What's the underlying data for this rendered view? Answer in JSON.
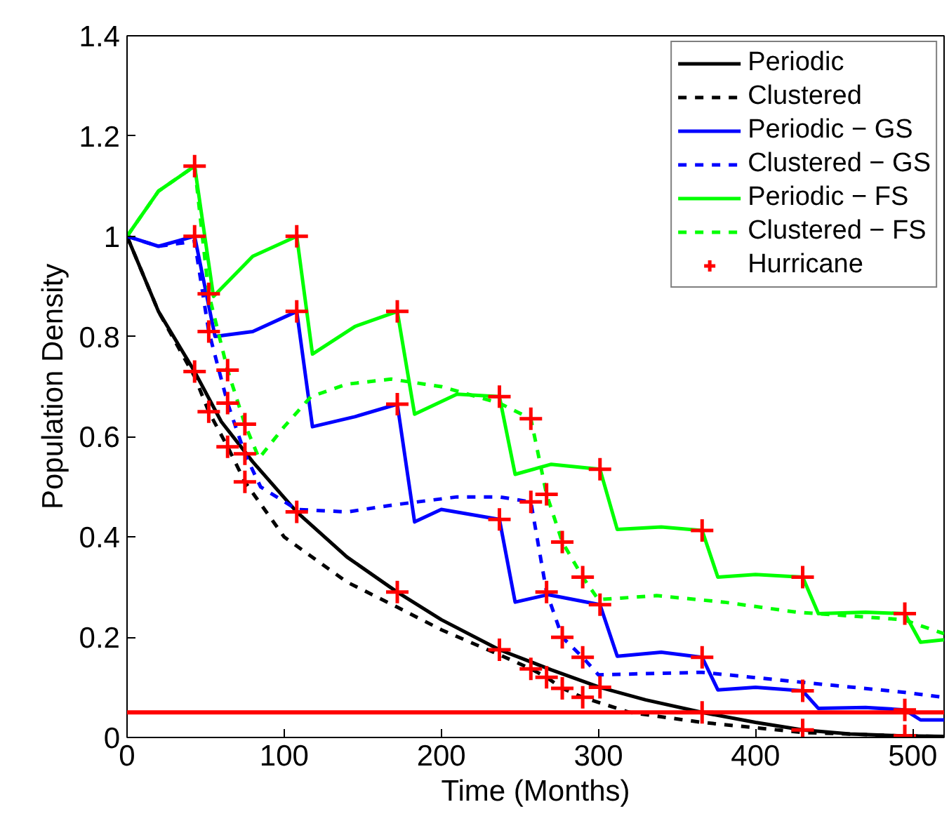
{
  "chart_data": {
    "type": "line",
    "xlabel": "Time (Months)",
    "ylabel": "Population Density",
    "xlim": [
      0,
      520
    ],
    "ylim": [
      0,
      1.4
    ],
    "xticks": [
      0,
      100,
      200,
      300,
      400,
      500
    ],
    "yticks": [
      0,
      0.2,
      0.4,
      0.6,
      0.8,
      1,
      1.2,
      1.4
    ],
    "grid": false,
    "legend": "top right",
    "ref_lines": [
      {
        "axis": "y",
        "value": 0.05,
        "color": "#ff0000"
      }
    ],
    "series": [
      {
        "name": "Periodic",
        "color": "#000000",
        "line_style": "solid",
        "marker": "none",
        "x": [
          0,
          20,
          43,
          60,
          80,
          108,
          140,
          172,
          200,
          237,
          270,
          301,
          330,
          366,
          400,
          430,
          460,
          495,
          520
        ],
        "values": [
          1,
          0.85,
          0.73,
          0.63,
          0.55,
          0.45,
          0.36,
          0.29,
          0.235,
          0.175,
          0.135,
          0.1,
          0.075,
          0.05,
          0.03,
          0.015,
          0.007,
          0.003,
          0.002
        ]
      },
      {
        "name": "Clustered",
        "color": "#000000",
        "line_style": "dashed",
        "marker": "none",
        "x": [
          0,
          20,
          43,
          52,
          64,
          75,
          100,
          140,
          172,
          200,
          237,
          257,
          267,
          277,
          290,
          320,
          366,
          430,
          495,
          520
        ],
        "values": [
          1,
          0.85,
          0.72,
          0.65,
          0.58,
          0.51,
          0.4,
          0.31,
          0.26,
          0.215,
          0.165,
          0.137,
          0.12,
          0.098,
          0.08,
          0.05,
          0.03,
          0.01,
          0.003,
          0.002
        ]
      },
      {
        "name": "Periodic − GS",
        "color": "#0000ff",
        "line_style": "solid",
        "marker": "none",
        "x": [
          0,
          20,
          43,
          56,
          80,
          108,
          118,
          145,
          172,
          183,
          200,
          237,
          247,
          268,
          301,
          312,
          340,
          366,
          376,
          400,
          430,
          440,
          470,
          495,
          505,
          520
        ],
        "values": [
          1,
          0.98,
          1,
          0.8,
          0.81,
          0.85,
          0.62,
          0.64,
          0.665,
          0.43,
          0.455,
          0.435,
          0.27,
          0.285,
          0.265,
          0.162,
          0.17,
          0.16,
          0.095,
          0.1,
          0.093,
          0.058,
          0.06,
          0.055,
          0.035,
          0.035
        ]
      },
      {
        "name": "Clustered − GS",
        "color": "#0000ff",
        "line_style": "dashed",
        "marker": "none",
        "x": [
          0,
          20,
          43,
          52,
          64,
          75,
          85,
          108,
          140,
          172,
          210,
          237,
          257,
          267,
          277,
          290,
          300,
          366,
          430,
          495,
          520
        ],
        "values": [
          1,
          0.98,
          0.99,
          0.81,
          0.667,
          0.566,
          0.5,
          0.455,
          0.45,
          0.465,
          0.48,
          0.48,
          0.47,
          0.29,
          0.2,
          0.16,
          0.125,
          0.13,
          0.11,
          0.09,
          0.08
        ]
      },
      {
        "name": "Periodic − FS",
        "color": "#00ff00",
        "line_style": "solid",
        "marker": "none",
        "x": [
          0,
          20,
          43,
          55,
          80,
          108,
          118,
          145,
          172,
          183,
          210,
          237,
          247,
          270,
          301,
          312,
          340,
          366,
          376,
          400,
          430,
          440,
          470,
          495,
          505,
          520
        ],
        "values": [
          1,
          1.09,
          1.14,
          0.88,
          0.96,
          1,
          0.765,
          0.82,
          0.85,
          0.645,
          0.685,
          0.68,
          0.525,
          0.545,
          0.535,
          0.415,
          0.42,
          0.413,
          0.32,
          0.325,
          0.32,
          0.247,
          0.25,
          0.247,
          0.19,
          0.195
        ]
      },
      {
        "name": "Clustered − FS",
        "color": "#00ff00",
        "line_style": "dashed",
        "marker": "none",
        "x": [
          0,
          20,
          43,
          52,
          64,
          75,
          84,
          100,
          117,
          140,
          168,
          200,
          237,
          257,
          267,
          277,
          290,
          300,
          337,
          380,
          426,
          494,
          520
        ],
        "values": [
          1,
          1.09,
          1.14,
          0.885,
          0.733,
          0.625,
          0.557,
          0.62,
          0.68,
          0.705,
          0.715,
          0.7,
          0.667,
          0.636,
          0.485,
          0.39,
          0.32,
          0.275,
          0.283,
          0.27,
          0.25,
          0.235,
          0.207
        ]
      },
      {
        "name": "Hurricane",
        "type": "scatter",
        "color": "#ff0000",
        "marker": "cross",
        "x": [
          43,
          108,
          172,
          237,
          301,
          366,
          430,
          495,
          43,
          108,
          172,
          237,
          301,
          366,
          430,
          495,
          43,
          108,
          172,
          237,
          301,
          366,
          430,
          495,
          52,
          64,
          75,
          257,
          267,
          277,
          290,
          52,
          64,
          75,
          257,
          267,
          277,
          290,
          52,
          64,
          75,
          257,
          267,
          277,
          290
        ],
        "values": [
          0.73,
          0.45,
          0.29,
          0.175,
          0.1,
          0.05,
          0.015,
          0.003,
          1,
          0.85,
          0.665,
          0.435,
          0.265,
          0.16,
          0.093,
          0.055,
          1.14,
          1,
          0.85,
          0.68,
          0.535,
          0.413,
          0.32,
          0.247,
          0.65,
          0.58,
          0.51,
          0.137,
          0.12,
          0.098,
          0.08,
          0.81,
          0.667,
          0.566,
          0.47,
          0.29,
          0.2,
          0.16,
          0.885,
          0.733,
          0.625,
          0.636,
          0.485,
          0.39,
          0.32
        ]
      }
    ]
  }
}
